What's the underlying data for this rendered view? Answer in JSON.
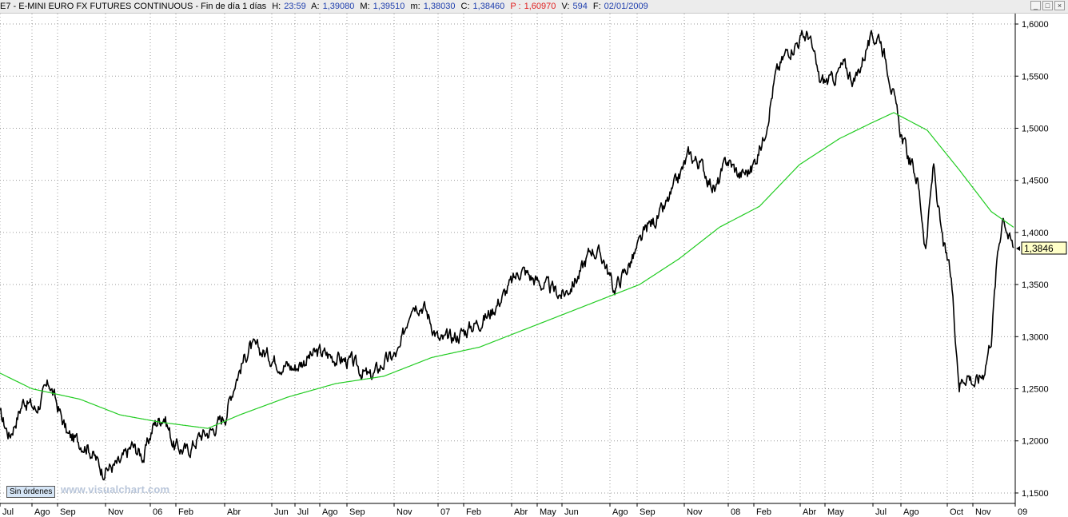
{
  "window": {
    "symbol": "E7 - E-MINI EURO FX FUTURES CONTINUOUS - Fin de día 1 días",
    "h_label": "H:",
    "h_value": "23:59",
    "a_label": "A:",
    "a_value": "1,39080",
    "m_label": "M:",
    "m_value": "1,39510",
    "min_label": "m:",
    "min_value": "1,38030",
    "c_label": "C:",
    "c_value": "1,38460",
    "p_label": "P :",
    "p_value": "1,60970",
    "v_label": "V:",
    "v_value": "594",
    "f_label": "F:",
    "f_value": "02/01/2009",
    "btn_min": "_",
    "btn_max": "□",
    "btn_close": "×"
  },
  "badge": {
    "label": "Sin órdenes"
  },
  "watermark": {
    "text": "www.visualchart.com"
  },
  "colors": {
    "price": "#000000",
    "average": "#22cc22",
    "grid": "#9a9a9a",
    "last_badge": "#ffffc8"
  },
  "chart_data": {
    "type": "line",
    "ylim": [
      1.14,
      1.61
    ],
    "y_ticks": [
      1.15,
      1.2,
      1.25,
      1.3,
      1.35,
      1.4,
      1.45,
      1.5,
      1.55,
      1.6
    ],
    "y_tick_labels": [
      "1,1500",
      "1,2000",
      "1,2500",
      "1,3000",
      "1,3500",
      "1,4000",
      "1,4500",
      "1,5000",
      "1,5500",
      "1,6000"
    ],
    "x_tick_labels": [
      "Jul",
      "Ago",
      "Sep",
      "Nov",
      "06",
      "Feb",
      "Abr",
      "Jun",
      "Jul",
      "Ago",
      "Sep",
      "Nov",
      "07",
      "Feb",
      "Abr",
      "May",
      "Jun",
      "Ago",
      "Sep",
      "Nov",
      "08",
      "Feb",
      "Abr",
      "May",
      "Jul",
      "Ago",
      "Oct",
      "Nov",
      "09"
    ],
    "x_tick_index": [
      0,
      40,
      72,
      132,
      188,
      220,
      281,
      340,
      369,
      400,
      434,
      493,
      548,
      580,
      640,
      672,
      703,
      763,
      797,
      856,
      911,
      943,
      1001,
      1032,
      1092,
      1127,
      1185,
      1217,
      1270
    ],
    "last_value_label": "1,3846",
    "series": [
      {
        "role": "price",
        "anchors": [
          [
            0,
            1.225
          ],
          [
            12,
            1.205
          ],
          [
            30,
            1.24
          ],
          [
            45,
            1.23
          ],
          [
            62,
            1.255
          ],
          [
            85,
            1.205
          ],
          [
            110,
            1.195
          ],
          [
            128,
            1.172
          ],
          [
            150,
            1.178
          ],
          [
            165,
            1.195
          ],
          [
            180,
            1.185
          ],
          [
            192,
            1.215
          ],
          [
            205,
            1.225
          ],
          [
            218,
            1.195
          ],
          [
            235,
            1.19
          ],
          [
            250,
            1.205
          ],
          [
            265,
            1.21
          ],
          [
            282,
            1.225
          ],
          [
            295,
            1.26
          ],
          [
            312,
            1.29
          ],
          [
            330,
            1.285
          ],
          [
            350,
            1.275
          ],
          [
            368,
            1.27
          ],
          [
            385,
            1.28
          ],
          [
            400,
            1.285
          ],
          [
            420,
            1.28
          ],
          [
            440,
            1.275
          ],
          [
            463,
            1.26
          ],
          [
            480,
            1.275
          ],
          [
            500,
            1.285
          ],
          [
            515,
            1.335
          ],
          [
            530,
            1.33
          ],
          [
            550,
            1.295
          ],
          [
            570,
            1.3
          ],
          [
            590,
            1.31
          ],
          [
            610,
            1.32
          ],
          [
            630,
            1.34
          ],
          [
            652,
            1.365
          ],
          [
            668,
            1.355
          ],
          [
            690,
            1.345
          ],
          [
            705,
            1.34
          ],
          [
            725,
            1.36
          ],
          [
            740,
            1.385
          ],
          [
            755,
            1.375
          ],
          [
            768,
            1.345
          ],
          [
            780,
            1.36
          ],
          [
            795,
            1.38
          ],
          [
            810,
            1.405
          ],
          [
            830,
            1.42
          ],
          [
            845,
            1.445
          ],
          [
            862,
            1.475
          ],
          [
            877,
            1.465
          ],
          [
            895,
            1.44
          ],
          [
            910,
            1.47
          ],
          [
            925,
            1.455
          ],
          [
            940,
            1.46
          ],
          [
            955,
            1.49
          ],
          [
            970,
            1.55
          ],
          [
            985,
            1.575
          ],
          [
            1000,
            1.585
          ],
          [
            1012,
            1.59
          ],
          [
            1025,
            1.545
          ],
          [
            1040,
            1.545
          ],
          [
            1055,
            1.56
          ],
          [
            1070,
            1.545
          ],
          [
            1085,
            1.58
          ],
          [
            1100,
            1.59
          ],
          [
            1112,
            1.555
          ],
          [
            1125,
            1.5
          ],
          [
            1135,
            1.475
          ],
          [
            1148,
            1.45
          ],
          [
            1158,
            1.385
          ],
          [
            1168,
            1.465
          ],
          [
            1178,
            1.395
          ],
          [
            1190,
            1.355
          ],
          [
            1200,
            1.255
          ],
          [
            1210,
            1.265
          ],
          [
            1220,
            1.255
          ],
          [
            1230,
            1.265
          ],
          [
            1240,
            1.3
          ],
          [
            1248,
            1.38
          ],
          [
            1255,
            1.42
          ],
          [
            1262,
            1.395
          ],
          [
            1268,
            1.385
          ]
        ]
      },
      {
        "role": "average",
        "anchors": [
          [
            0,
            1.265
          ],
          [
            40,
            1.25
          ],
          [
            100,
            1.24
          ],
          [
            150,
            1.225
          ],
          [
            200,
            1.218
          ],
          [
            260,
            1.212
          ],
          [
            300,
            1.225
          ],
          [
            360,
            1.242
          ],
          [
            420,
            1.255
          ],
          [
            480,
            1.262
          ],
          [
            540,
            1.28
          ],
          [
            600,
            1.29
          ],
          [
            650,
            1.305
          ],
          [
            700,
            1.32
          ],
          [
            750,
            1.335
          ],
          [
            800,
            1.35
          ],
          [
            850,
            1.375
          ],
          [
            900,
            1.405
          ],
          [
            950,
            1.425
          ],
          [
            1000,
            1.465
          ],
          [
            1050,
            1.49
          ],
          [
            1090,
            1.505
          ],
          [
            1118,
            1.515
          ],
          [
            1160,
            1.498
          ],
          [
            1200,
            1.46
          ],
          [
            1240,
            1.42
          ],
          [
            1268,
            1.405
          ]
        ]
      }
    ]
  }
}
